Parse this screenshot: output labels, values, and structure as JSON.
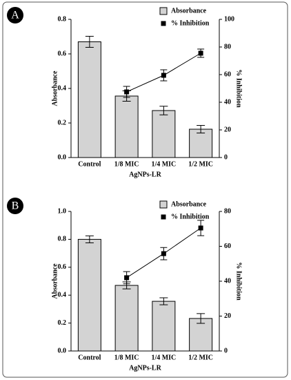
{
  "chart_data": [
    {
      "type": "bar",
      "panel_label": "A",
      "xlabel": "AgNPs-LR",
      "ylabel": "Absorbance",
      "y2label": "% Inhibition",
      "categories": [
        "Control",
        "1/8 MIC",
        "1/4 MIC",
        "1/2 MIC"
      ],
      "series": [
        {
          "name": "Absorbance",
          "type": "bar",
          "color": "#d3d3d3",
          "values": [
            0.67,
            0.356,
            0.272,
            0.164
          ],
          "errors": [
            0.032,
            0.03,
            0.025,
            0.022
          ]
        },
        {
          "name": "% Inhibition",
          "type": "line",
          "axis": "y2",
          "color": "#000000",
          "values": [
            null,
            47.5,
            59.5,
            75.5
          ],
          "errors": [
            null,
            4,
            4,
            3
          ]
        }
      ],
      "ylim": [
        0,
        0.8
      ],
      "yticks": [
        {
          "value": 0,
          "label": "0.0"
        },
        0.2,
        0.4,
        0.6,
        0.8
      ],
      "y2lim": [
        0,
        100
      ],
      "y2ticks": [
        0,
        20,
        40,
        60,
        80,
        100
      ],
      "legend": "top-right"
    },
    {
      "type": "bar",
      "panel_label": "B",
      "xlabel": "AgNPs-LR",
      "ylabel": "Absorbance",
      "y2label": "% Inhibition",
      "categories": [
        "Control",
        "1/8 MIC",
        "1/4 MIC",
        "1/2 MIC"
      ],
      "series": [
        {
          "name": "Absorbance",
          "type": "bar",
          "color": "#d3d3d3",
          "values": [
            0.8,
            0.47,
            0.356,
            0.233
          ],
          "errors": [
            0.025,
            0.025,
            0.025,
            0.035
          ]
        },
        {
          "name": "% Inhibition",
          "type": "line",
          "axis": "y2",
          "color": "#000000",
          "values": [
            null,
            42,
            55.8,
            70.5
          ],
          "errors": [
            null,
            3.5,
            3.5,
            4.4
          ]
        }
      ],
      "ylim": [
        0,
        1.0
      ],
      "yticks": [
        {
          "value": 0,
          "label": "0.0"
        },
        0.2,
        0.4,
        0.6,
        0.8,
        {
          "value": 1.0,
          "label": "1.0"
        }
      ],
      "y2lim": [
        0,
        80
      ],
      "y2ticks": [
        0,
        20,
        40,
        60,
        80
      ],
      "legend": "top-right"
    }
  ]
}
